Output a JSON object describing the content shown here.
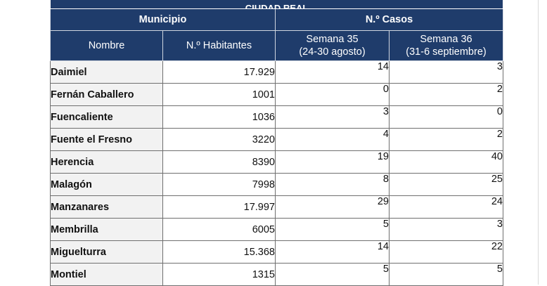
{
  "table": {
    "top_title": "CIUDAD REAL",
    "group_headers": {
      "municipio": "Municipio",
      "casos": "N.º Casos"
    },
    "column_headers": {
      "nombre": "Nombre",
      "habitantes": "N.º Habitantes",
      "semana35_line1": "Semana 35",
      "semana35_line2": "(24-30 agosto)",
      "semana36_line1": "Semana 36",
      "semana36_line2": "(31-6 septiembre)"
    },
    "rows": [
      {
        "nombre": "Daimiel",
        "habitantes": "17.929",
        "semana35": "14",
        "semana36": "3"
      },
      {
        "nombre": "Fernán Caballero",
        "habitantes": "1001",
        "semana35": "0",
        "semana36": "2"
      },
      {
        "nombre": "Fuencaliente",
        "habitantes": "1036",
        "semana35": "3",
        "semana36": "0"
      },
      {
        "nombre": "Fuente el Fresno",
        "habitantes": "3220",
        "semana35": "4",
        "semana36": "2"
      },
      {
        "nombre": "Herencia",
        "habitantes": "8390",
        "semana35": "19",
        "semana36": "40"
      },
      {
        "nombre": "Malagón",
        "habitantes": "7998",
        "semana35": "8",
        "semana36": "25"
      },
      {
        "nombre": "Manzanares",
        "habitantes": "17.997",
        "semana35": "29",
        "semana36": "24"
      },
      {
        "nombre": "Membrilla",
        "habitantes": "6005",
        "semana35": "5",
        "semana36": "3"
      },
      {
        "nombre": "Miguelturra",
        "habitantes": "15.368",
        "semana35": "14",
        "semana36": "22"
      },
      {
        "nombre": "Montiel",
        "habitantes": "1315",
        "semana35": "5",
        "semana36": "5"
      }
    ]
  },
  "colors": {
    "header_bg": "#1f3c6b",
    "name_cell_bg": "#f2f2f2"
  }
}
